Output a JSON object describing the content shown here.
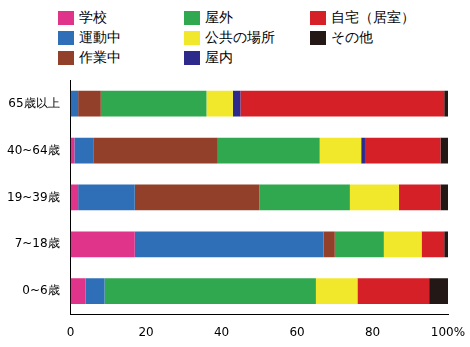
{
  "chart_data": {
    "type": "bar",
    "orientation": "horizontal",
    "stacked": true,
    "grid": false,
    "legend": "top",
    "categories": [
      "65歳以上",
      "40~64歳",
      "19~39歳",
      "7~18歳",
      "0~6歳"
    ],
    "series": [
      {
        "name": "学校",
        "color": "#e0338a",
        "values": [
          0,
          1,
          2,
          17,
          4
        ]
      },
      {
        "name": "運動中",
        "color": "#2e6fb7",
        "values": [
          2,
          5,
          15,
          50,
          5
        ]
      },
      {
        "name": "作業中",
        "color": "#93402a",
        "values": [
          6,
          33,
          33,
          3,
          0
        ]
      },
      {
        "name": "屋外",
        "color": "#2fa84f",
        "values": [
          28,
          27,
          24,
          13,
          56
        ]
      },
      {
        "name": "公共の場所",
        "color": "#f2e82b",
        "values": [
          7,
          11,
          13,
          10,
          11
        ]
      },
      {
        "name": "屋内",
        "color": "#2d2a8c",
        "values": [
          2,
          1,
          0,
          0,
          0
        ]
      },
      {
        "name": "自宅（居室）",
        "color": "#d62028",
        "values": [
          54,
          20,
          11,
          6,
          19
        ]
      },
      {
        "name": "その他",
        "color": "#231815",
        "values": [
          1,
          2,
          2,
          1,
          5
        ]
      }
    ],
    "xlim": [
      0,
      100
    ],
    "xticks": [
      0,
      20,
      40,
      60,
      80,
      {
        "value": 100,
        "label": "100%"
      }
    ]
  }
}
